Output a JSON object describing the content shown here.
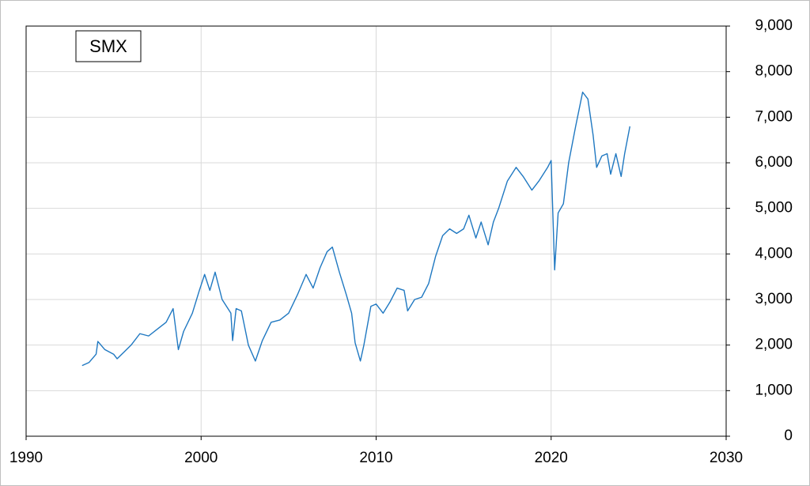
{
  "chart_data": {
    "type": "line",
    "title": "SMX",
    "x": [
      1993.2,
      1993.6,
      1994.0,
      1994.1,
      1994.5,
      1995.0,
      1995.2,
      1995.6,
      1996.0,
      1996.5,
      1997.0,
      1997.5,
      1998.0,
      1998.4,
      1998.7,
      1999.0,
      1999.5,
      1999.9,
      2000.2,
      2000.5,
      2000.8,
      2001.2,
      2001.7,
      2001.8,
      2002.0,
      2002.3,
      2002.7,
      2003.1,
      2003.5,
      2004.0,
      2004.5,
      2005.0,
      2005.5,
      2006.0,
      2006.4,
      2006.8,
      2007.2,
      2007.5,
      2007.9,
      2008.3,
      2008.6,
      2008.8,
      2009.1,
      2009.3,
      2009.7,
      2010.0,
      2010.4,
      2010.8,
      2011.2,
      2011.6,
      2011.8,
      2012.2,
      2012.6,
      2013.0,
      2013.4,
      2013.8,
      2014.2,
      2014.6,
      2015.0,
      2015.3,
      2015.7,
      2016.0,
      2016.4,
      2016.7,
      2017.0,
      2017.5,
      2018.0,
      2018.4,
      2018.9,
      2019.3,
      2019.8,
      2020.0,
      2020.2,
      2020.4,
      2020.7,
      2021.0,
      2021.4,
      2021.8,
      2022.1,
      2022.4,
      2022.6,
      2022.9,
      2023.2,
      2023.4,
      2023.7,
      2024.0,
      2024.2,
      2024.5
    ],
    "series": [
      {
        "name": "SMX",
        "color": "#1f78c1",
        "values": [
          1550,
          1620,
          1800,
          2080,
          1900,
          1800,
          1700,
          1850,
          2000,
          2250,
          2200,
          2350,
          2500,
          2800,
          1900,
          2300,
          2700,
          3200,
          3550,
          3200,
          3600,
          3000,
          2700,
          2100,
          2800,
          2750,
          2000,
          1650,
          2100,
          2500,
          2550,
          2700,
          3100,
          3550,
          3250,
          3700,
          4050,
          4150,
          3600,
          3100,
          2700,
          2050,
          1650,
          2000,
          2850,
          2900,
          2700,
          2950,
          3250,
          3200,
          2750,
          3000,
          3050,
          3350,
          3950,
          4400,
          4550,
          4450,
          4550,
          4850,
          4350,
          4700,
          4200,
          4700,
          5000,
          5600,
          5900,
          5700,
          5400,
          5600,
          5900,
          6050,
          3650,
          4900,
          5100,
          6000,
          6800,
          7550,
          7400,
          6600,
          5900,
          6150,
          6200,
          5750,
          6200,
          5700,
          6200,
          6800
        ]
      }
    ],
    "xlim": [
      1990,
      2030
    ],
    "xticks": [
      1990,
      2000,
      2010,
      2020,
      2030
    ],
    "ylim": [
      0,
      9000
    ],
    "yticks": [
      0,
      {
        "value": 1000,
        "label": "1,000"
      },
      {
        "value": 2000,
        "label": "2,000"
      },
      {
        "value": 3000,
        "label": "3,000"
      },
      {
        "value": 4000,
        "label": "4,000"
      },
      {
        "value": 5000,
        "label": "5,000"
      },
      {
        "value": 6000,
        "label": "6,000"
      },
      {
        "value": 7000,
        "label": "7,000"
      },
      {
        "value": 8000,
        "label": "8,000"
      },
      {
        "value": 9000,
        "label": "9,000"
      }
    ],
    "grid": true
  }
}
